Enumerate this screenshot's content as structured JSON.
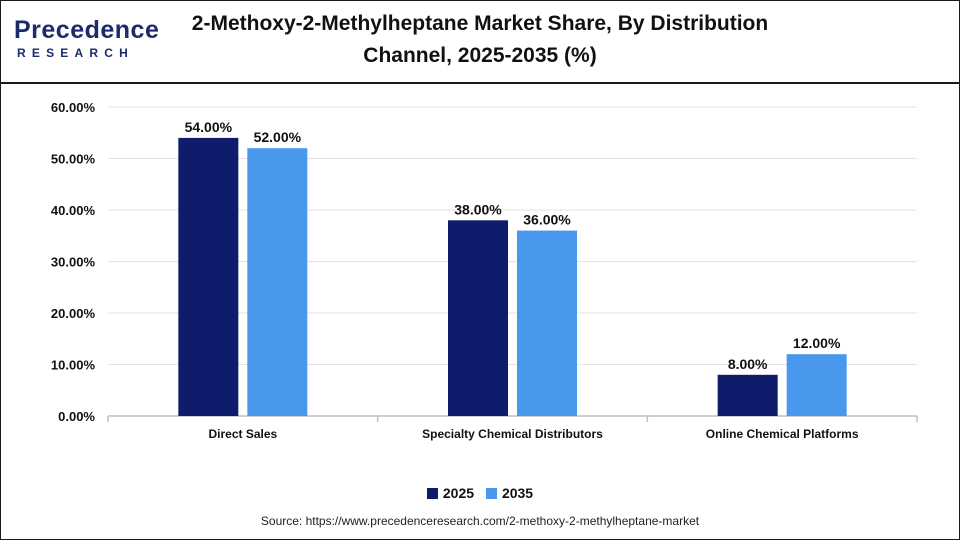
{
  "brand": {
    "name_top": "Precedence",
    "name_bottom": "RESEARCH"
  },
  "title_line1": "2-Methoxy-2-Methylheptane Market Share, By Distribution",
  "title_line2": "Channel, 2025-2035 (%)",
  "source": "Source: https://www.precedenceresearch.com/2-methoxy-2-methylheptane-market",
  "colors": {
    "s2025": "#0f1c6b",
    "s2035": "#4a97ee",
    "grid": "#e3e3e3",
    "axis": "#bfbfbf"
  },
  "chart_data": {
    "type": "bar",
    "categories": [
      "Direct Sales",
      "Specialty Chemical Distributors",
      "Online Chemical Platforms"
    ],
    "series": [
      {
        "name": "2025",
        "values": [
          54.0,
          38.0,
          8.0
        ],
        "labels": [
          "54.00%",
          "38.00%",
          "8.00%"
        ]
      },
      {
        "name": "2035",
        "values": [
          52.0,
          36.0,
          12.0
        ],
        "labels": [
          "52.00%",
          "36.00%",
          "12.00%"
        ]
      }
    ],
    "ylim": [
      0,
      60
    ],
    "yticks": [
      "0.00%",
      "10.00%",
      "20.00%",
      "30.00%",
      "40.00%",
      "50.00%",
      "60.00%"
    ],
    "grid": true,
    "legend": "bottom-center"
  }
}
